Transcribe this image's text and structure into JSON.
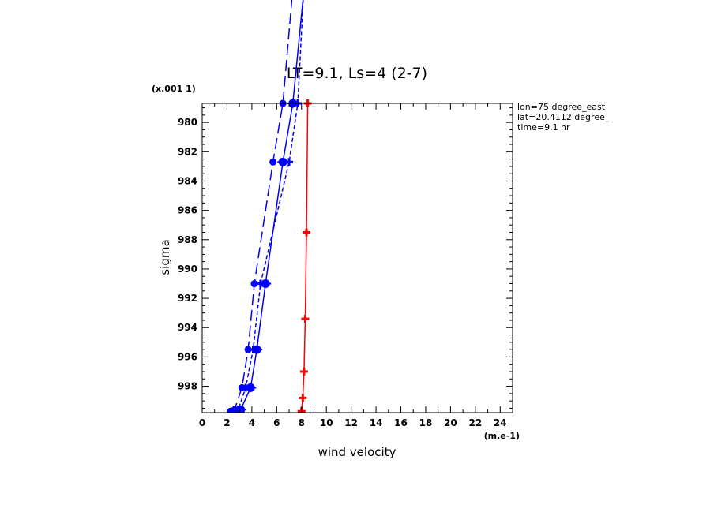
{
  "chart_data": {
    "type": "line",
    "title": "LT=9.1, Ls=4 (2-7)",
    "xlabel": "wind velocity",
    "ylabel": "sigma",
    "x_scale_note": "(m.e-1)",
    "y_scale_note": "(x.001 1)",
    "xlim": [
      0,
      25
    ],
    "ylim": [
      999.8,
      978.7
    ],
    "x_ticks": [
      "0",
      "2",
      "4",
      "6",
      "8",
      "10",
      "12",
      "14",
      "16",
      "18",
      "20",
      "22",
      "24"
    ],
    "y_ticks": [
      "980",
      "982",
      "984",
      "986",
      "988",
      "990",
      "992",
      "994",
      "996",
      "998"
    ],
    "annotations": [
      "lon=75 degree_east",
      "lat=20.4112 degree_",
      "time=9.1 hr"
    ],
    "grid": false,
    "series": [
      {
        "color": "#0000ff",
        "dash": "none",
        "marker": "circle",
        "points": [
          [
            2.8,
            999.7
          ],
          [
            3.1,
            999.6
          ],
          [
            3.9,
            998.1
          ],
          [
            4.4,
            995.5
          ],
          [
            5.1,
            991.0
          ],
          [
            6.5,
            982.7
          ],
          [
            7.3,
            978.7
          ],
          [
            9.0,
            964.0
          ]
        ]
      },
      {
        "color": "#0000ff",
        "dash": "long",
        "marker": "filled-circle",
        "points": [
          [
            2.3,
            999.7
          ],
          [
            2.6,
            999.6
          ],
          [
            3.2,
            998.1
          ],
          [
            3.7,
            995.5
          ],
          [
            4.2,
            991.0
          ],
          [
            5.7,
            982.7
          ],
          [
            6.5,
            978.7
          ],
          [
            8.0,
            964.0
          ]
        ]
      },
      {
        "color": "#0000ff",
        "dash": "short",
        "marker": "plus",
        "points": [
          [
            2.6,
            999.7
          ],
          [
            2.9,
            999.6
          ],
          [
            3.5,
            998.1
          ],
          [
            4.1,
            995.5
          ],
          [
            4.7,
            991.0
          ],
          [
            7.0,
            982.7
          ],
          [
            7.7,
            978.7
          ],
          [
            8.6,
            964.0
          ]
        ]
      },
      {
        "color": "#ff0000",
        "dash": "none",
        "marker": "plus",
        "points": [
          [
            8.0,
            999.7
          ],
          [
            8.1,
            998.8
          ],
          [
            8.2,
            997.0
          ],
          [
            8.3,
            993.4
          ],
          [
            8.4,
            987.5
          ],
          [
            8.5,
            978.7
          ]
        ]
      }
    ]
  }
}
